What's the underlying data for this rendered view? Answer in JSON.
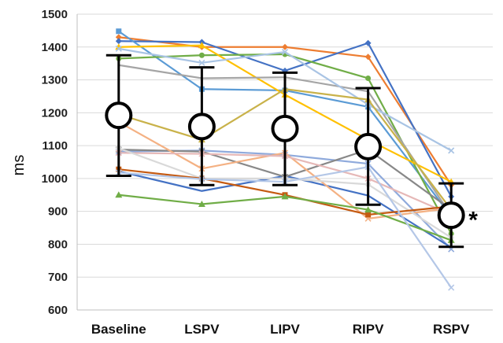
{
  "chart_data": {
    "type": "line",
    "title": "",
    "xlabel": "",
    "ylabel": "ms",
    "categories": [
      "Baseline",
      "LSPV",
      "LIPV",
      "RIPV",
      "RSPV"
    ],
    "ylim": [
      600,
      1500
    ],
    "yticks": [
      "600",
      "700",
      "800",
      "900",
      "1000",
      "1100",
      "1200",
      "1300",
      "1400",
      "1500"
    ],
    "grid": true,
    "significance_label": "*",
    "significance_index": 4,
    "mean": [
      1192,
      1158,
      1152,
      1097,
      888
    ],
    "sd_upper": [
      1375,
      1338,
      1322,
      1275,
      985
    ],
    "sd_lower": [
      1008,
      980,
      980,
      920,
      792
    ],
    "series": [
      {
        "color": "#ed7d31",
        "marker": "diamond",
        "values": [
          1430,
          1400,
          1400,
          1370,
          980
        ]
      },
      {
        "color": "#4472c4",
        "marker": "diamond",
        "values": [
          1418,
          1415,
          1328,
          1412,
          945
        ]
      },
      {
        "color": "#5b9bd5",
        "marker": "square",
        "values": [
          1448,
          1272,
          1268,
          1218,
          885
        ]
      },
      {
        "color": "#70ad47",
        "marker": "circle",
        "values": [
          1365,
          1375,
          1378,
          1305,
          832
        ]
      },
      {
        "color": "#ffc000",
        "marker": "triangle",
        "values": [
          1400,
          1405,
          1255,
          1118,
          990
        ]
      },
      {
        "color": "#a5a5a5",
        "marker": "none",
        "values": [
          1345,
          1305,
          1308,
          1265,
          888
        ]
      },
      {
        "color": "#a9c4e4",
        "marker": "x",
        "values": [
          1395,
          1352,
          1385,
          1225,
          1085
        ]
      },
      {
        "color": "#c9b24a",
        "marker": "triangle",
        "values": [
          1195,
          1118,
          1272,
          1240,
          905
        ]
      },
      {
        "color": "#8faadc",
        "marker": "x",
        "values": [
          1082,
          1085,
          1072,
          1045,
          785
        ]
      },
      {
        "color": "#4472c4",
        "marker": "none",
        "values": [
          1022,
          962,
          1008,
          948,
          790
        ]
      },
      {
        "color": "#888888",
        "marker": "x",
        "values": [
          1088,
          1082,
          1005,
          1088,
          905
        ]
      },
      {
        "color": "#f4b183",
        "marker": "x",
        "values": [
          1172,
          1030,
          1078,
          878,
          910
        ]
      },
      {
        "color": "#e6b8b7",
        "marker": "x",
        "values": [
          1078,
          1075,
          1068,
          1000,
          890
        ]
      },
      {
        "color": "#d9d9d9",
        "marker": "circle",
        "values": [
          1092,
          1000,
          1000,
          982,
          820
        ]
      },
      {
        "color": "#c55a11",
        "marker": "square",
        "values": [
          1028,
          1000,
          950,
          890,
          915
        ]
      },
      {
        "color": "#70ad47",
        "marker": "triangle",
        "values": [
          950,
          922,
          945,
          905,
          812
        ]
      },
      {
        "color": "#b4c7e7",
        "marker": "x",
        "values": [
          1018,
          998,
          990,
          1035,
          668
        ]
      }
    ]
  }
}
